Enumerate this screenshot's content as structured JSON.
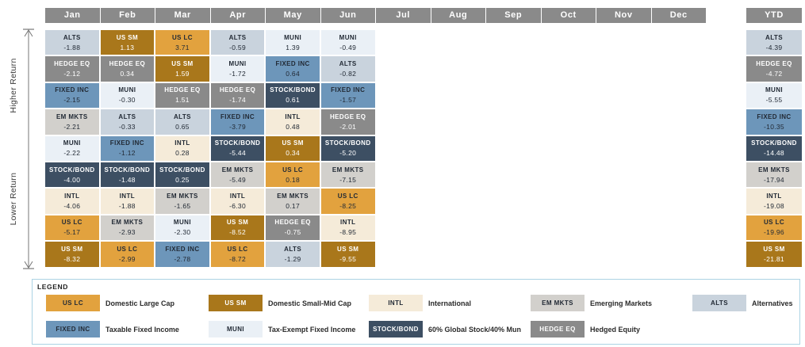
{
  "header": {
    "months": [
      "Jan",
      "Feb",
      "Mar",
      "Apr",
      "May",
      "Jun",
      "Jul",
      "Aug",
      "Sep",
      "Oct",
      "Nov",
      "Dec"
    ],
    "ytd_label": "YTD"
  },
  "axis": {
    "higher_label": "Higher Return",
    "lower_label": "Lower Return"
  },
  "asset_styles": {
    "US LC": {
      "bg": "#E2A23E",
      "fg": "#222A35"
    },
    "US SM": {
      "bg": "#A9771B",
      "fg": "#FFFFFF"
    },
    "INTL": {
      "bg": "#F5EBD9",
      "fg": "#222A35"
    },
    "EM MKTS": {
      "bg": "#D2D0CC",
      "fg": "#222A35"
    },
    "ALTS": {
      "bg": "#C9D3DD",
      "fg": "#222A35"
    },
    "FIXED INC": {
      "bg": "#6D96BA",
      "fg": "#222A35"
    },
    "MUNI": {
      "bg": "#EAF0F6",
      "fg": "#222A35"
    },
    "STOCK/BOND": {
      "bg": "#3D4F63",
      "fg": "#FFFFFF"
    },
    "HEDGE EQ": {
      "bg": "#8A8A8A",
      "fg": "#FFFFFF"
    }
  },
  "chart_data": {
    "type": "table",
    "title": "Asset class returns ranked monthly, higher return (top) to lower return (bottom)",
    "columns": [
      "Jan",
      "Feb",
      "Mar",
      "Apr",
      "May",
      "Jun",
      "Jul",
      "Aug",
      "Sep",
      "Oct",
      "Nov",
      "Dec",
      "YTD"
    ],
    "months": [
      {
        "label": "Jan",
        "cells": [
          {
            "asset": "ALTS",
            "value": "-1.88"
          },
          {
            "asset": "HEDGE EQ",
            "value": "-2.12"
          },
          {
            "asset": "FIXED INC",
            "value": "-2.15"
          },
          {
            "asset": "EM MKTS",
            "value": "-2.21"
          },
          {
            "asset": "MUNI",
            "value": "-2.22"
          },
          {
            "asset": "STOCK/BOND",
            "value": "-4.00"
          },
          {
            "asset": "INTL",
            "value": "-4.06"
          },
          {
            "asset": "US LC",
            "value": "-5.17"
          },
          {
            "asset": "US SM",
            "value": "-8.32"
          }
        ]
      },
      {
        "label": "Feb",
        "cells": [
          {
            "asset": "US SM",
            "value": "1.13"
          },
          {
            "asset": "HEDGE EQ",
            "value": "0.34"
          },
          {
            "asset": "MUNI",
            "value": "-0.30"
          },
          {
            "asset": "ALTS",
            "value": "-0.33"
          },
          {
            "asset": "FIXED INC",
            "value": "-1.12"
          },
          {
            "asset": "STOCK/BOND",
            "value": "-1.48"
          },
          {
            "asset": "INTL",
            "value": "-1.88"
          },
          {
            "asset": "EM MKTS",
            "value": "-2.93"
          },
          {
            "asset": "US LC",
            "value": "-2.99"
          }
        ]
      },
      {
        "label": "Mar",
        "cells": [
          {
            "asset": "US LC",
            "value": "3.71"
          },
          {
            "asset": "US SM",
            "value": "1.59"
          },
          {
            "asset": "HEDGE EQ",
            "value": "1.51"
          },
          {
            "asset": "ALTS",
            "value": "0.65"
          },
          {
            "asset": "INTL",
            "value": "0.28"
          },
          {
            "asset": "STOCK/BOND",
            "value": "0.25"
          },
          {
            "asset": "EM MKTS",
            "value": "-1.65"
          },
          {
            "asset": "MUNI",
            "value": "-2.30"
          },
          {
            "asset": "FIXED INC",
            "value": "-2.78"
          }
        ]
      },
      {
        "label": "Apr",
        "cells": [
          {
            "asset": "ALTS",
            "value": "-0.59"
          },
          {
            "asset": "MUNI",
            "value": "-1.72"
          },
          {
            "asset": "HEDGE EQ",
            "value": "-1.74"
          },
          {
            "asset": "FIXED INC",
            "value": "-3.79"
          },
          {
            "asset": "STOCK/BOND",
            "value": "-5.44"
          },
          {
            "asset": "EM MKTS",
            "value": "-5.49"
          },
          {
            "asset": "INTL",
            "value": "-6.30"
          },
          {
            "asset": "US SM",
            "value": "-8.52"
          },
          {
            "asset": "US LC",
            "value": "-8.72"
          }
        ]
      },
      {
        "label": "May",
        "cells": [
          {
            "asset": "MUNI",
            "value": "1.39"
          },
          {
            "asset": "FIXED INC",
            "value": "0.64"
          },
          {
            "asset": "STOCK/BOND",
            "value": "0.61"
          },
          {
            "asset": "INTL",
            "value": "0.48"
          },
          {
            "asset": "US SM",
            "value": "0.34"
          },
          {
            "asset": "US LC",
            "value": "0.18"
          },
          {
            "asset": "EM MKTS",
            "value": "0.17"
          },
          {
            "asset": "HEDGE EQ",
            "value": "-0.75"
          },
          {
            "asset": "ALTS",
            "value": "-1.29"
          }
        ]
      },
      {
        "label": "Jun",
        "cells": [
          {
            "asset": "MUNI",
            "value": "-0.49"
          },
          {
            "asset": "ALTS",
            "value": "-0.82"
          },
          {
            "asset": "FIXED INC",
            "value": "-1.57"
          },
          {
            "asset": "HEDGE EQ",
            "value": "-2.01"
          },
          {
            "asset": "STOCK/BOND",
            "value": "-5.20"
          },
          {
            "asset": "EM MKTS",
            "value": "-7.15"
          },
          {
            "asset": "US LC",
            "value": "-8.25"
          },
          {
            "asset": "INTL",
            "value": "-8.95"
          },
          {
            "asset": "US SM",
            "value": "-9.55"
          }
        ]
      },
      {
        "label": "Jul",
        "cells": []
      },
      {
        "label": "Aug",
        "cells": []
      },
      {
        "label": "Sep",
        "cells": []
      },
      {
        "label": "Oct",
        "cells": []
      },
      {
        "label": "Nov",
        "cells": []
      },
      {
        "label": "Dec",
        "cells": []
      }
    ],
    "ytd": {
      "label": "YTD",
      "cells": [
        {
          "asset": "ALTS",
          "value": "-4.39"
        },
        {
          "asset": "HEDGE EQ",
          "value": "-4.72"
        },
        {
          "asset": "MUNI",
          "value": "-5.55"
        },
        {
          "asset": "FIXED INC",
          "value": "-10.35"
        },
        {
          "asset": "STOCK/BOND",
          "value": "-14.48"
        },
        {
          "asset": "EM MKTS",
          "value": "-17.94"
        },
        {
          "asset": "INTL",
          "value": "-19.08"
        },
        {
          "asset": "US LC",
          "value": "-19.96"
        },
        {
          "asset": "US SM",
          "value": "-21.81"
        }
      ]
    }
  },
  "legend": {
    "title": "LEGEND",
    "items": [
      {
        "chip": "US LC",
        "desc": "Domestic Large Cap",
        "row": 0
      },
      {
        "chip": "US SM",
        "desc": "Domestic Small-Mid Cap",
        "row": 0
      },
      {
        "chip": "INTL",
        "desc": "International",
        "row": 0
      },
      {
        "chip": "EM MKTS",
        "desc": "Emerging Markets",
        "row": 0
      },
      {
        "chip": "ALTS",
        "desc": "Alternatives",
        "row": 0
      },
      {
        "chip": "FIXED INC",
        "desc": "Taxable Fixed Income",
        "row": 1
      },
      {
        "chip": "MUNI",
        "desc": "Tax-Exempt Fixed Income",
        "row": 1
      },
      {
        "chip": "STOCK/BOND",
        "desc": "60% Global Stock/40% Mun",
        "row": 1
      },
      {
        "chip": "HEDGE EQ",
        "desc": "Hedged Equity",
        "row": 1
      }
    ]
  }
}
